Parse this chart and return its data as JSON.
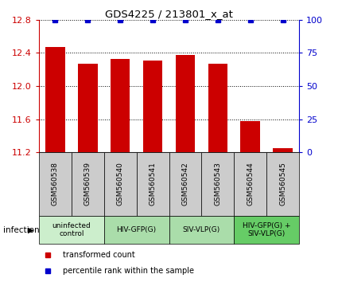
{
  "title": "GDS4225 / 213801_x_at",
  "samples": [
    "GSM560538",
    "GSM560539",
    "GSM560540",
    "GSM560541",
    "GSM560542",
    "GSM560543",
    "GSM560544",
    "GSM560545"
  ],
  "bar_values": [
    12.47,
    12.27,
    12.33,
    12.31,
    12.37,
    12.27,
    11.58,
    11.25
  ],
  "percentile_values": [
    100,
    100,
    100,
    100,
    100,
    100,
    100,
    100
  ],
  "bar_color": "#cc0000",
  "percentile_color": "#0000cc",
  "ylim_left": [
    11.2,
    12.8
  ],
  "ylim_right": [
    0,
    100
  ],
  "yticks_left": [
    11.2,
    11.6,
    12.0,
    12.4,
    12.8
  ],
  "yticks_right": [
    0,
    25,
    50,
    75,
    100
  ],
  "groups": [
    {
      "label": "uninfected\ncontrol",
      "start": 0,
      "end": 2,
      "color": "#cceecc"
    },
    {
      "label": "HIV-GFP(G)",
      "start": 2,
      "end": 4,
      "color": "#aaddaa"
    },
    {
      "label": "SIV-VLP(G)",
      "start": 4,
      "end": 6,
      "color": "#aaddaa"
    },
    {
      "label": "HIV-GFP(G) +\nSIV-VLP(G)",
      "start": 6,
      "end": 8,
      "color": "#66cc66"
    }
  ],
  "legend_items": [
    {
      "label": "transformed count",
      "color": "#cc0000"
    },
    {
      "label": "percentile rank within the sample",
      "color": "#0000cc"
    }
  ],
  "infection_label": "infection",
  "sample_box_color": "#cccccc",
  "grid_linestyle": "dotted"
}
